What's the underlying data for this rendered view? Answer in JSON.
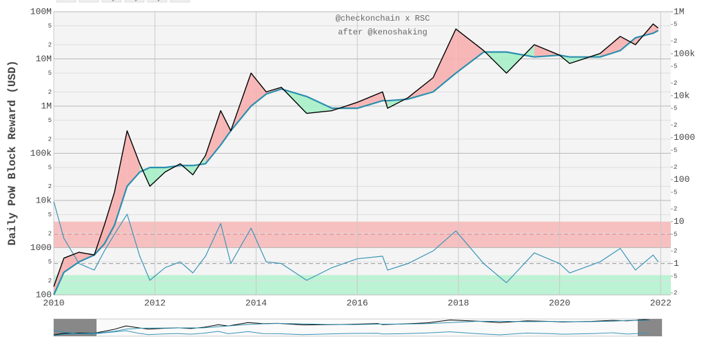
{
  "chart_data": {
    "type": "line",
    "y_axis_label": "Daily PoW Block Reward (USD)",
    "annotations": [
      "@checkonchain x RSC",
      "after @kenoshaking"
    ],
    "range_buttons": [
      "YTD",
      "6m",
      "1y",
      "3y",
      "5y",
      "all"
    ],
    "xlim": [
      2010,
      2022.2
    ],
    "xticks": [
      2010,
      2012,
      2014,
      2016,
      2018,
      2020,
      2022
    ],
    "log_y": true,
    "ylim": [
      100,
      100000000
    ],
    "yticks": [
      {
        "value": 100000000,
        "label": "100M"
      },
      {
        "value": 50000000,
        "label": "5"
      },
      {
        "value": 20000000,
        "label": "2"
      },
      {
        "value": 10000000,
        "label": "10M"
      },
      {
        "value": 5000000,
        "label": "5"
      },
      {
        "value": 2000000,
        "label": "2"
      },
      {
        "value": 1000000,
        "label": "1M"
      },
      {
        "value": 500000,
        "label": "5"
      },
      {
        "value": 200000,
        "label": "2"
      },
      {
        "value": 100000,
        "label": "100k"
      },
      {
        "value": 50000,
        "label": "5"
      },
      {
        "value": 20000,
        "label": "2"
      },
      {
        "value": 10000,
        "label": "10k"
      },
      {
        "value": 5000,
        "label": "5"
      },
      {
        "value": 2000,
        "label": "2"
      },
      1000,
      {
        "value": 500,
        "label": "5"
      },
      {
        "value": 200,
        "label": "2"
      },
      100
    ],
    "y2lim": [
      0.18,
      1000000
    ],
    "y2ticks": [
      {
        "value": 1000000,
        "label": "1M"
      },
      {
        "value": 500000,
        "label": "5"
      },
      {
        "value": 200000,
        "label": "2"
      },
      {
        "value": 100000,
        "label": "100k"
      },
      {
        "value": 50000,
        "label": "5"
      },
      {
        "value": 20000,
        "label": "2"
      },
      {
        "value": 10000,
        "label": "10k"
      },
      {
        "value": 5000,
        "label": "5"
      },
      {
        "value": 2000,
        "label": "2"
      },
      1000,
      {
        "value": 500,
        "label": "5"
      },
      {
        "value": 200,
        "label": "2"
      },
      100,
      {
        "value": 50,
        "label": "5"
      },
      {
        "value": 20,
        "label": "2"
      },
      10,
      {
        "value": 5,
        "label": "5"
      },
      {
        "value": 2,
        "label": "2"
      },
      1,
      {
        "value": 0.5,
        "label": "5"
      },
      {
        "value": 0.2,
        "label": "2"
      }
    ],
    "grid": true,
    "bands": [
      {
        "from": 2.4,
        "to": 10,
        "color": "#f7b3b3"
      },
      {
        "from": 0.18,
        "to": 0.53,
        "color": "#aef2cc"
      }
    ],
    "hlines": [
      {
        "value": 5,
        "color": "#e08080"
      },
      {
        "value": 1,
        "color": "#999999"
      }
    ],
    "fill_colors": {
      "above": "#f7b0b0",
      "below": "#a6f0c6"
    },
    "x": [
      2010.0,
      2010.2,
      2010.5,
      2010.8,
      2011.0,
      2011.2,
      2011.45,
      2011.7,
      2011.9,
      2012.2,
      2012.5,
      2012.75,
      2013.0,
      2013.3,
      2013.5,
      2013.9,
      2014.2,
      2014.5,
      2015.0,
      2015.5,
      2016.0,
      2016.5,
      2016.6,
      2017.0,
      2017.5,
      2017.95,
      2018.5,
      2018.95,
      2019.5,
      2020.0,
      2020.2,
      2020.8,
      2021.2,
      2021.5,
      2021.85,
      2021.95
    ],
    "series": [
      {
        "color": "#000000",
        "width": 1.4,
        "values": [
          150,
          600,
          800,
          700,
          3000,
          15000,
          300000,
          60000,
          20000,
          40000,
          60000,
          35000,
          90000,
          800000,
          300000,
          5000000,
          2000000,
          2500000,
          700000,
          800000,
          1200000,
          2000000,
          900000,
          1500000,
          4000000,
          43000000,
          15000000,
          5000000,
          20000000,
          12000000,
          8000000,
          13000000,
          30000000,
          20000000,
          55000000,
          45000000
        ]
      },
      {
        "color": "#2b8fae",
        "width": 2.2,
        "values": [
          100,
          300,
          500,
          700,
          1200,
          3000,
          20000,
          40000,
          50000,
          50000,
          55000,
          55000,
          60000,
          150000,
          300000,
          1000000,
          1800000,
          2300000,
          1600000,
          900000,
          900000,
          1300000,
          1300000,
          1400000,
          2000000,
          5000000,
          14000000,
          14000000,
          11000000,
          12000000,
          11000000,
          11000000,
          15000000,
          28000000,
          35000000,
          40000000
        ]
      },
      {
        "color": "#3a94b8",
        "width": 1.2,
        "axis": "y2",
        "values": [
          30,
          4,
          1,
          0.7,
          2,
          5,
          15,
          1.5,
          0.4,
          0.8,
          1.1,
          0.6,
          1.5,
          9,
          1,
          7,
          1.1,
          1,
          0.4,
          0.8,
          1.3,
          1.5,
          0.7,
          1,
          2,
          6,
          1,
          0.35,
          1.8,
          1,
          0.6,
          1.1,
          2.3,
          0.7,
          1.6,
          1.1
        ]
      }
    ]
  }
}
